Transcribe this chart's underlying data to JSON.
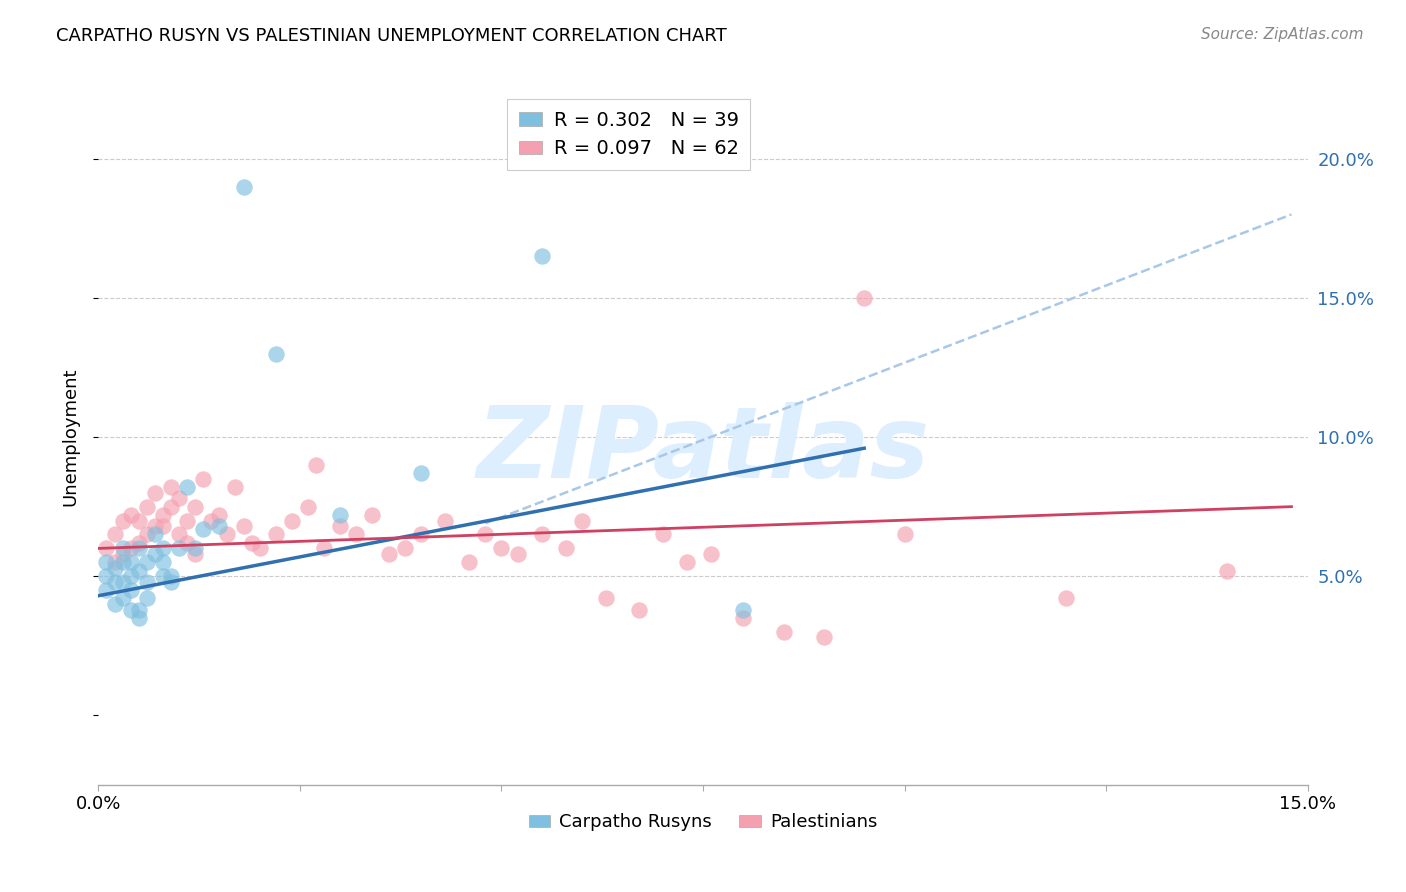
{
  "title": "CARPATHO RUSYN VS PALESTINIAN UNEMPLOYMENT CORRELATION CHART",
  "source": "Source: ZipAtlas.com",
  "ylabel": "Unemployment",
  "xlim": [
    0,
    0.15
  ],
  "ylim": [
    -0.025,
    0.225
  ],
  "yticks": [
    0.05,
    0.1,
    0.15,
    0.2
  ],
  "ytick_labels": [
    "5.0%",
    "10.0%",
    "15.0%",
    "20.0%"
  ],
  "xticks": [
    0.0,
    0.025,
    0.05,
    0.075,
    0.1,
    0.125,
    0.15
  ],
  "legend_r1": "R = 0.302",
  "legend_n1": "N = 39",
  "legend_r2": "R = 0.097",
  "legend_n2": "N = 62",
  "blue_color": "#7fbfdf",
  "pink_color": "#f4a0b0",
  "blue_line_color": "#3070b0",
  "pink_line_color": "#d04060",
  "dashed_line_color": "#a8c8e8",
  "watermark_color": "#ddeeff",
  "watermark_text": "ZIPatlas",
  "blue_points_x": [
    0.001,
    0.001,
    0.001,
    0.002,
    0.002,
    0.002,
    0.003,
    0.003,
    0.003,
    0.003,
    0.004,
    0.004,
    0.004,
    0.004,
    0.005,
    0.005,
    0.005,
    0.005,
    0.006,
    0.006,
    0.006,
    0.007,
    0.007,
    0.008,
    0.008,
    0.008,
    0.009,
    0.009,
    0.01,
    0.011,
    0.012,
    0.013,
    0.015,
    0.018,
    0.022,
    0.03,
    0.04,
    0.055,
    0.08
  ],
  "blue_points_y": [
    0.05,
    0.055,
    0.045,
    0.048,
    0.053,
    0.04,
    0.055,
    0.048,
    0.042,
    0.06,
    0.055,
    0.05,
    0.038,
    0.045,
    0.06,
    0.052,
    0.038,
    0.035,
    0.048,
    0.042,
    0.055,
    0.065,
    0.058,
    0.055,
    0.05,
    0.06,
    0.05,
    0.048,
    0.06,
    0.082,
    0.06,
    0.067,
    0.068,
    0.19,
    0.13,
    0.072,
    0.087,
    0.165,
    0.038
  ],
  "pink_points_x": [
    0.001,
    0.002,
    0.002,
    0.003,
    0.003,
    0.004,
    0.004,
    0.005,
    0.005,
    0.006,
    0.006,
    0.007,
    0.007,
    0.008,
    0.008,
    0.009,
    0.009,
    0.01,
    0.01,
    0.011,
    0.011,
    0.012,
    0.012,
    0.013,
    0.014,
    0.015,
    0.016,
    0.017,
    0.018,
    0.019,
    0.02,
    0.022,
    0.024,
    0.026,
    0.027,
    0.028,
    0.03,
    0.032,
    0.034,
    0.036,
    0.038,
    0.04,
    0.043,
    0.046,
    0.048,
    0.05,
    0.052,
    0.055,
    0.058,
    0.06,
    0.063,
    0.067,
    0.07,
    0.073,
    0.076,
    0.08,
    0.085,
    0.09,
    0.095,
    0.1,
    0.12,
    0.14
  ],
  "pink_points_y": [
    0.06,
    0.055,
    0.065,
    0.058,
    0.07,
    0.06,
    0.072,
    0.07,
    0.062,
    0.065,
    0.075,
    0.068,
    0.08,
    0.068,
    0.072,
    0.075,
    0.082,
    0.065,
    0.078,
    0.062,
    0.07,
    0.075,
    0.058,
    0.085,
    0.07,
    0.072,
    0.065,
    0.082,
    0.068,
    0.062,
    0.06,
    0.065,
    0.07,
    0.075,
    0.09,
    0.06,
    0.068,
    0.065,
    0.072,
    0.058,
    0.06,
    0.065,
    0.07,
    0.055,
    0.065,
    0.06,
    0.058,
    0.065,
    0.06,
    0.07,
    0.042,
    0.038,
    0.065,
    0.055,
    0.058,
    0.035,
    0.03,
    0.028,
    0.15,
    0.065,
    0.042,
    0.052
  ],
  "blue_line_x0": 0.0,
  "blue_line_x1": 0.095,
  "blue_line_y0": 0.043,
  "blue_line_y1": 0.096,
  "dashed_line_x0": 0.048,
  "dashed_line_x1": 0.148,
  "dashed_line_y0": 0.069,
  "dashed_line_y1": 0.18,
  "pink_line_x0": 0.0,
  "pink_line_x1": 0.148,
  "pink_line_y0": 0.06,
  "pink_line_y1": 0.075,
  "background_color": "#ffffff",
  "grid_color": "#cccccc"
}
